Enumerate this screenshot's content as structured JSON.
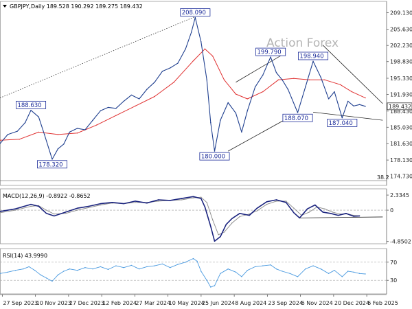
{
  "chart_data": [
    {
      "type": "line",
      "title": "GBPJPY,Daily",
      "ohlc_header": "189.528 190.292 189.275 189.432",
      "watermark": "Action Forex",
      "last_price_label": "189.432",
      "last_price": 189.432,
      "ylim": [
        172.8,
        211.5
      ],
      "y_ticks": [
        "209.130",
        "205.630",
        "202.230",
        "198.830",
        "195.330",
        "191.930",
        "188.430",
        "185.030",
        "181.630",
        "178.130",
        "174.730"
      ],
      "x_ticks": [
        "27 Sep 2023",
        "10 Nov 2023",
        "27 Dec 2023",
        "12 Feb 2024",
        "27 Mar 2024",
        "10 May 2024",
        "25 Jun 2024",
        "8 Aug 2024",
        "23 Sep 2024",
        "6 Nov 2024",
        "20 Dec 2024",
        "6 Feb 2025"
      ],
      "fib_label": "38.2",
      "annotations": [
        {
          "label": "208.090",
          "t": 0.505,
          "value": 208.09
        },
        {
          "label": "188.630",
          "t": 0.08,
          "value": 188.63
        },
        {
          "label": "178.320",
          "t": 0.135,
          "value": 178.32
        },
        {
          "label": "180.000",
          "t": 0.555,
          "value": 180.0
        },
        {
          "label": "199.790",
          "t": 0.7,
          "value": 199.79
        },
        {
          "label": "198.940",
          "t": 0.81,
          "value": 198.94
        },
        {
          "label": "188.070",
          "t": 0.77,
          "value": 188.07
        },
        {
          "label": "187.040",
          "t": 0.885,
          "value": 187.04
        }
      ],
      "series": [
        {
          "color": "#1f3f8f",
          "values": [
            [
              0,
              181.6
            ],
            [
              0.02,
              183.5
            ],
            [
              0.045,
              184.2
            ],
            [
              0.065,
              186.0
            ],
            [
              0.08,
              188.6
            ],
            [
              0.1,
              187.2
            ],
            [
              0.115,
              183.5
            ],
            [
              0.135,
              178.3
            ],
            [
              0.15,
              180.5
            ],
            [
              0.165,
              181.5
            ],
            [
              0.18,
              184.0
            ],
            [
              0.2,
              184.8
            ],
            [
              0.22,
              184.5
            ],
            [
              0.24,
              186.5
            ],
            [
              0.26,
              188.5
            ],
            [
              0.28,
              189.2
            ],
            [
              0.3,
              189.0
            ],
            [
              0.32,
              190.5
            ],
            [
              0.34,
              191.8
            ],
            [
              0.36,
              191.0
            ],
            [
              0.38,
              193.0
            ],
            [
              0.4,
              194.5
            ],
            [
              0.42,
              196.8
            ],
            [
              0.44,
              197.5
            ],
            [
              0.46,
              198.5
            ],
            [
              0.48,
              201.5
            ],
            [
              0.495,
              205.0
            ],
            [
              0.505,
              208.1
            ],
            [
              0.52,
              203.0
            ],
            [
              0.535,
              195.0
            ],
            [
              0.545,
              186.0
            ],
            [
              0.555,
              180.0
            ],
            [
              0.57,
              186.5
            ],
            [
              0.59,
              190.2
            ],
            [
              0.61,
              188.0
            ],
            [
              0.625,
              184.0
            ],
            [
              0.64,
              188.5
            ],
            [
              0.66,
              193.5
            ],
            [
              0.68,
              196.0
            ],
            [
              0.7,
              199.8
            ],
            [
              0.715,
              196.5
            ],
            [
              0.73,
              195.0
            ],
            [
              0.745,
              193.0
            ],
            [
              0.77,
              188.1
            ],
            [
              0.79,
              193.5
            ],
            [
              0.81,
              198.9
            ],
            [
              0.83,
              195.5
            ],
            [
              0.85,
              191.0
            ],
            [
              0.865,
              192.5
            ],
            [
              0.885,
              187.0
            ],
            [
              0.9,
              190.5
            ],
            [
              0.915,
              189.5
            ],
            [
              0.93,
              189.8
            ],
            [
              0.945,
              189.43
            ]
          ]
        },
        {
          "color": "#e03030",
          "values": [
            [
              0,
              182.3
            ],
            [
              0.05,
              182.5
            ],
            [
              0.1,
              184.0
            ],
            [
              0.15,
              183.5
            ],
            [
              0.2,
              183.8
            ],
            [
              0.25,
              185.5
            ],
            [
              0.3,
              187.5
            ],
            [
              0.35,
              189.5
            ],
            [
              0.4,
              191.5
            ],
            [
              0.45,
              194.5
            ],
            [
              0.5,
              199.0
            ],
            [
              0.53,
              201.5
            ],
            [
              0.55,
              200.0
            ],
            [
              0.58,
              195.0
            ],
            [
              0.61,
              192.0
            ],
            [
              0.64,
              191.0
            ],
            [
              0.68,
              192.5
            ],
            [
              0.72,
              195.0
            ],
            [
              0.76,
              195.3
            ],
            [
              0.8,
              195.0
            ],
            [
              0.84,
              195.0
            ],
            [
              0.88,
              194.0
            ],
            [
              0.91,
              192.5
            ],
            [
              0.945,
              191.2
            ]
          ]
        }
      ]
    },
    {
      "type": "line",
      "title": "MACD(12,26,9) -0.8922 -0.8652",
      "ylim": [
        -5.2,
        3.3
      ],
      "y_ticks": [
        "2.3345",
        "0",
        "-4.8502"
      ],
      "series": [
        {
          "color": "#1a237e",
          "values": [
            [
              0,
              -0.2
            ],
            [
              0.04,
              0.2
            ],
            [
              0.08,
              0.9
            ],
            [
              0.1,
              0.6
            ],
            [
              0.12,
              -0.5
            ],
            [
              0.14,
              -0.9
            ],
            [
              0.17,
              -0.3
            ],
            [
              0.2,
              0.3
            ],
            [
              0.23,
              0.6
            ],
            [
              0.26,
              1.0
            ],
            [
              0.29,
              1.2
            ],
            [
              0.32,
              1.0
            ],
            [
              0.35,
              1.4
            ],
            [
              0.38,
              1.1
            ],
            [
              0.41,
              1.6
            ],
            [
              0.44,
              1.5
            ],
            [
              0.47,
              1.8
            ],
            [
              0.5,
              2.1
            ],
            [
              0.52,
              1.8
            ],
            [
              0.53,
              0.5
            ],
            [
              0.545,
              -2.5
            ],
            [
              0.555,
              -4.8
            ],
            [
              0.57,
              -4.1
            ],
            [
              0.585,
              -2.2
            ],
            [
              0.6,
              -1.3
            ],
            [
              0.62,
              -0.5
            ],
            [
              0.645,
              -0.8
            ],
            [
              0.665,
              0.3
            ],
            [
              0.69,
              1.3
            ],
            [
              0.715,
              1.6
            ],
            [
              0.74,
              1.2
            ],
            [
              0.76,
              -0.4
            ],
            [
              0.775,
              -1.2
            ],
            [
              0.795,
              0.2
            ],
            [
              0.815,
              0.8
            ],
            [
              0.835,
              -0.3
            ],
            [
              0.855,
              -0.5
            ],
            [
              0.875,
              -0.8
            ],
            [
              0.895,
              -0.5
            ],
            [
              0.915,
              -0.95
            ],
            [
              0.93,
              -0.9
            ]
          ]
        },
        {
          "color": "#8a8a8a",
          "values": [
            [
              0,
              -0.4
            ],
            [
              0.04,
              0.0
            ],
            [
              0.08,
              0.6
            ],
            [
              0.1,
              0.7
            ],
            [
              0.12,
              0.0
            ],
            [
              0.14,
              -0.6
            ],
            [
              0.17,
              -0.5
            ],
            [
              0.2,
              0.0
            ],
            [
              0.23,
              0.4
            ],
            [
              0.26,
              0.8
            ],
            [
              0.29,
              1.1
            ],
            [
              0.32,
              1.0
            ],
            [
              0.35,
              1.2
            ],
            [
              0.38,
              1.2
            ],
            [
              0.41,
              1.4
            ],
            [
              0.44,
              1.5
            ],
            [
              0.47,
              1.6
            ],
            [
              0.5,
              1.9
            ],
            [
              0.52,
              2.0
            ],
            [
              0.535,
              1.2
            ],
            [
              0.55,
              -1.5
            ],
            [
              0.565,
              -3.8
            ],
            [
              0.58,
              -3.4
            ],
            [
              0.6,
              -2.0
            ],
            [
              0.62,
              -1.0
            ],
            [
              0.645,
              -0.6
            ],
            [
              0.665,
              -0.1
            ],
            [
              0.69,
              0.9
            ],
            [
              0.715,
              1.4
            ],
            [
              0.74,
              1.4
            ],
            [
              0.76,
              0.3
            ],
            [
              0.78,
              -0.8
            ],
            [
              0.8,
              -0.3
            ],
            [
              0.82,
              0.5
            ],
            [
              0.84,
              0.2
            ],
            [
              0.86,
              -0.3
            ],
            [
              0.88,
              -0.6
            ],
            [
              0.9,
              -0.6
            ],
            [
              0.915,
              -0.8
            ],
            [
              0.93,
              -0.87
            ]
          ]
        }
      ]
    },
    {
      "type": "line",
      "title": "RSI(14) 43.9990",
      "ylim": [
        0,
        100
      ],
      "y_ticks": [
        "70",
        "30"
      ],
      "series": [
        {
          "color": "#4a9ae0",
          "values": [
            [
              0,
              45
            ],
            [
              0.02,
              48
            ],
            [
              0.04,
              52
            ],
            [
              0.06,
              55
            ],
            [
              0.075,
              60
            ],
            [
              0.09,
              52
            ],
            [
              0.105,
              42
            ],
            [
              0.12,
              35
            ],
            [
              0.135,
              28
            ],
            [
              0.15,
              42
            ],
            [
              0.165,
              50
            ],
            [
              0.18,
              55
            ],
            [
              0.2,
              52
            ],
            [
              0.22,
              58
            ],
            [
              0.24,
              55
            ],
            [
              0.26,
              60
            ],
            [
              0.28,
              54
            ],
            [
              0.3,
              62
            ],
            [
              0.32,
              58
            ],
            [
              0.34,
              63
            ],
            [
              0.36,
              55
            ],
            [
              0.38,
              60
            ],
            [
              0.4,
              62
            ],
            [
              0.42,
              66
            ],
            [
              0.44,
              58
            ],
            [
              0.46,
              65
            ],
            [
              0.48,
              70
            ],
            [
              0.5,
              78
            ],
            [
              0.51,
              72
            ],
            [
              0.52,
              50
            ],
            [
              0.535,
              30
            ],
            [
              0.545,
              15
            ],
            [
              0.555,
              18
            ],
            [
              0.57,
              45
            ],
            [
              0.59,
              55
            ],
            [
              0.61,
              48
            ],
            [
              0.625,
              38
            ],
            [
              0.64,
              52
            ],
            [
              0.66,
              60
            ],
            [
              0.68,
              62
            ],
            [
              0.7,
              64
            ],
            [
              0.715,
              55
            ],
            [
              0.73,
              50
            ],
            [
              0.75,
              45
            ],
            [
              0.77,
              38
            ],
            [
              0.79,
              55
            ],
            [
              0.81,
              62
            ],
            [
              0.83,
              55
            ],
            [
              0.85,
              45
            ],
            [
              0.865,
              52
            ],
            [
              0.885,
              38
            ],
            [
              0.9,
              50
            ],
            [
              0.915,
              48
            ],
            [
              0.93,
              45
            ],
            [
              0.945,
              44
            ]
          ]
        }
      ]
    }
  ]
}
